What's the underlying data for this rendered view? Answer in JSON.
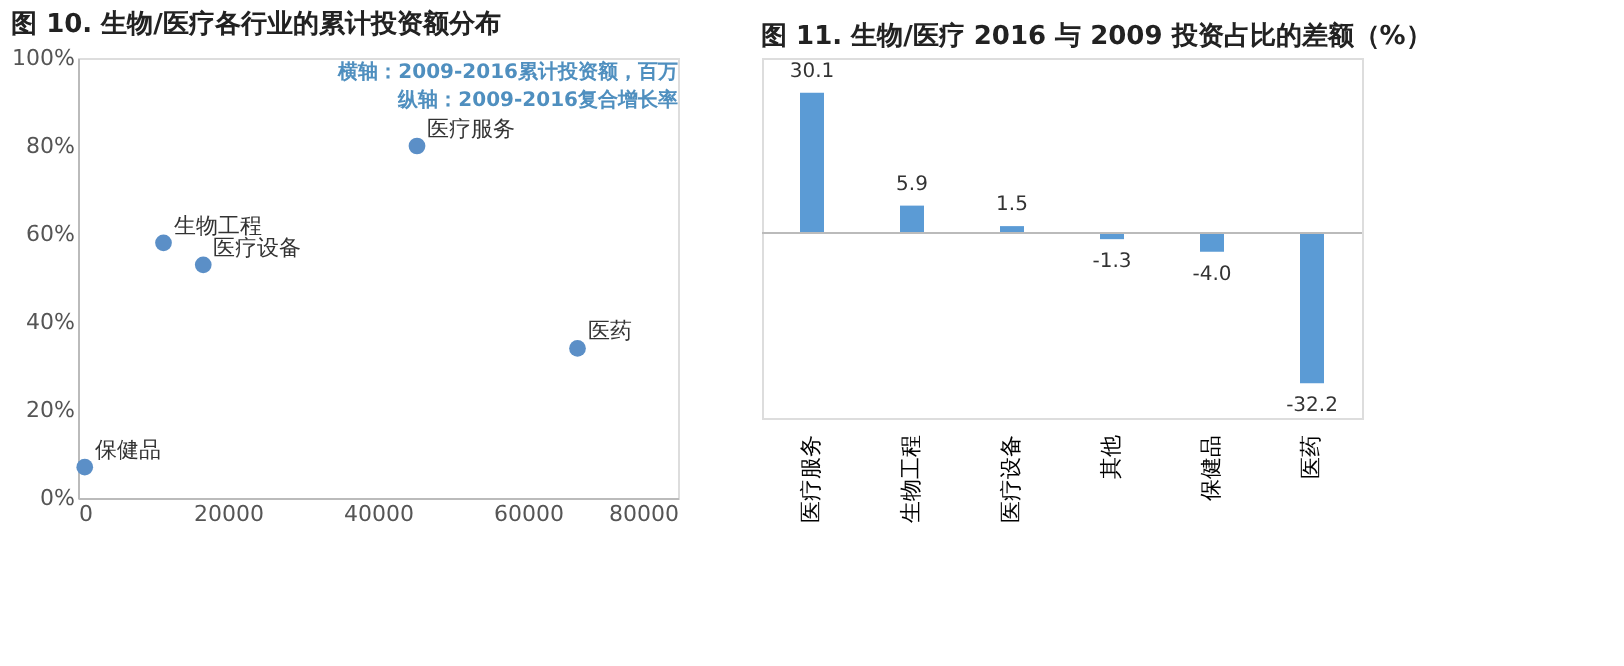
{
  "chart_data": [
    {
      "type": "scatter",
      "title": "图 10. 生物/医疗各行业的累计投资额分布",
      "x": [
        900,
        11400,
        16700,
        45200,
        66600
      ],
      "series": [
        {
          "color": "#5b8fc7",
          "values": [
            7,
            58,
            53,
            80,
            34
          ]
        }
      ],
      "xlim": [
        0,
        80000
      ],
      "xticks": [
        0,
        20000,
        40000,
        60000,
        80000
      ],
      "ylim": [
        0,
        100
      ],
      "yticks": [
        {
          "value": 0,
          "label": "0%"
        },
        {
          "value": 20,
          "label": "20%"
        },
        {
          "value": 40,
          "label": "40%"
        },
        {
          "value": 60,
          "label": "60%"
        },
        {
          "value": 80,
          "label": "80%"
        },
        {
          "value": 100,
          "label": "100%"
        }
      ],
      "grid": false,
      "marker": "circle",
      "annotations": [
        "横轴：2009-2016累计投资额，百万",
        "纵轴：2009-2016复合增长率",
        {
          "text": "保健品",
          "x": 900,
          "y": 7
        },
        {
          "text": "生物工程",
          "x": 11400,
          "y": 58
        },
        {
          "text": "医疗设备",
          "x": 16700,
          "y": 53
        },
        {
          "text": "医疗服务",
          "x": 45200,
          "y": 80
        },
        {
          "text": "医药",
          "x": 66600,
          "y": 34
        }
      ]
    },
    {
      "type": "bar",
      "title": "图 11. 生物/医疗 2016 与 2009 投资占比的差额（%）",
      "categories": [
        "医疗服务",
        "生物工程",
        "医疗设备",
        "其他",
        "保健品",
        "医药"
      ],
      "values": [
        30.1,
        5.9,
        1.5,
        -1.3,
        -4.0,
        -32.2
      ],
      "color": "#5b9bd5",
      "value_labels": [
        "30.1",
        "5.9",
        "1.5",
        "-1.3",
        "-4.0",
        "-32.2"
      ],
      "grid": false
    }
  ]
}
